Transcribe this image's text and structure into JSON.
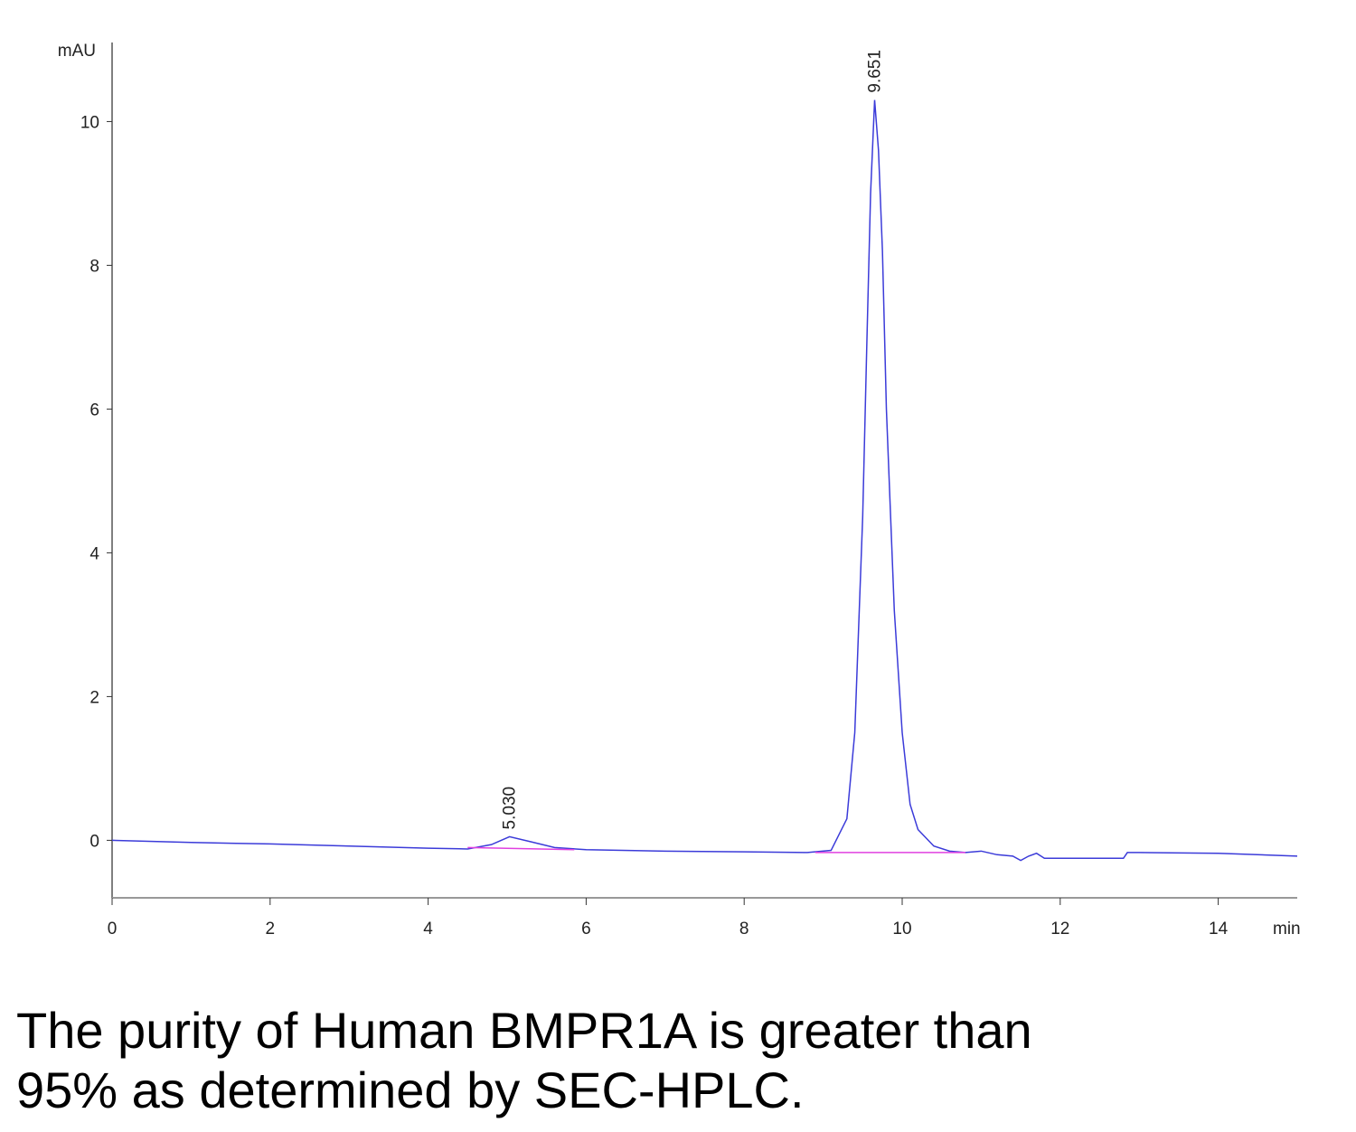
{
  "chart_data": {
    "type": "line",
    "ylabel": "mAU",
    "xlabel": "min",
    "xlim": [
      0,
      15
    ],
    "xticks": [
      0,
      2,
      4,
      6,
      8,
      10,
      12,
      14
    ],
    "ylim": [
      -0.8,
      11.1
    ],
    "yticks": [
      0,
      2,
      4,
      6,
      8,
      10
    ],
    "series": [
      {
        "color": "#3b3bd9",
        "x": [
          0,
          1,
          2,
          3,
          4,
          4.5,
          4.8,
          5.03,
          5.3,
          5.6,
          6,
          7,
          8,
          8.8,
          9.1,
          9.3,
          9.4,
          9.5,
          9.55,
          9.6,
          9.651,
          9.7,
          9.75,
          9.8,
          9.9,
          10,
          10.1,
          10.2,
          10.4,
          10.6,
          10.8,
          11,
          11.2,
          11.4,
          11.5,
          11.6,
          11.7,
          11.8,
          12,
          12.5,
          12.8,
          12.85,
          13,
          14,
          15
        ],
        "values": [
          0,
          -0.03,
          -0.05,
          -0.08,
          -0.11,
          -0.12,
          -0.06,
          0.05,
          -0.02,
          -0.1,
          -0.13,
          -0.15,
          -0.16,
          -0.17,
          -0.14,
          0.3,
          1.5,
          4.5,
          6.8,
          9.0,
          10.3,
          9.6,
          8.2,
          6.0,
          3.2,
          1.5,
          0.5,
          0.15,
          -0.08,
          -0.15,
          -0.17,
          -0.15,
          -0.2,
          -0.22,
          -0.28,
          -0.22,
          -0.18,
          -0.25,
          -0.25,
          -0.25,
          -0.25,
          -0.17,
          -0.17,
          -0.18,
          -0.22
        ]
      },
      {
        "color": "#e040e0",
        "x": [
          4.5,
          5.85
        ],
        "values": [
          -0.1,
          -0.13
        ]
      },
      {
        "color": "#e040e0",
        "x": [
          8.9,
          10.8
        ],
        "values": [
          -0.17,
          -0.17
        ]
      }
    ],
    "peaks": [
      5.03,
      9.651
    ],
    "peak_labels": [
      "5.030",
      "9.651"
    ],
    "caption": [
      "The purity of Human BMPR1A is greater than",
      "95% as determined by SEC-HPLC."
    ]
  }
}
